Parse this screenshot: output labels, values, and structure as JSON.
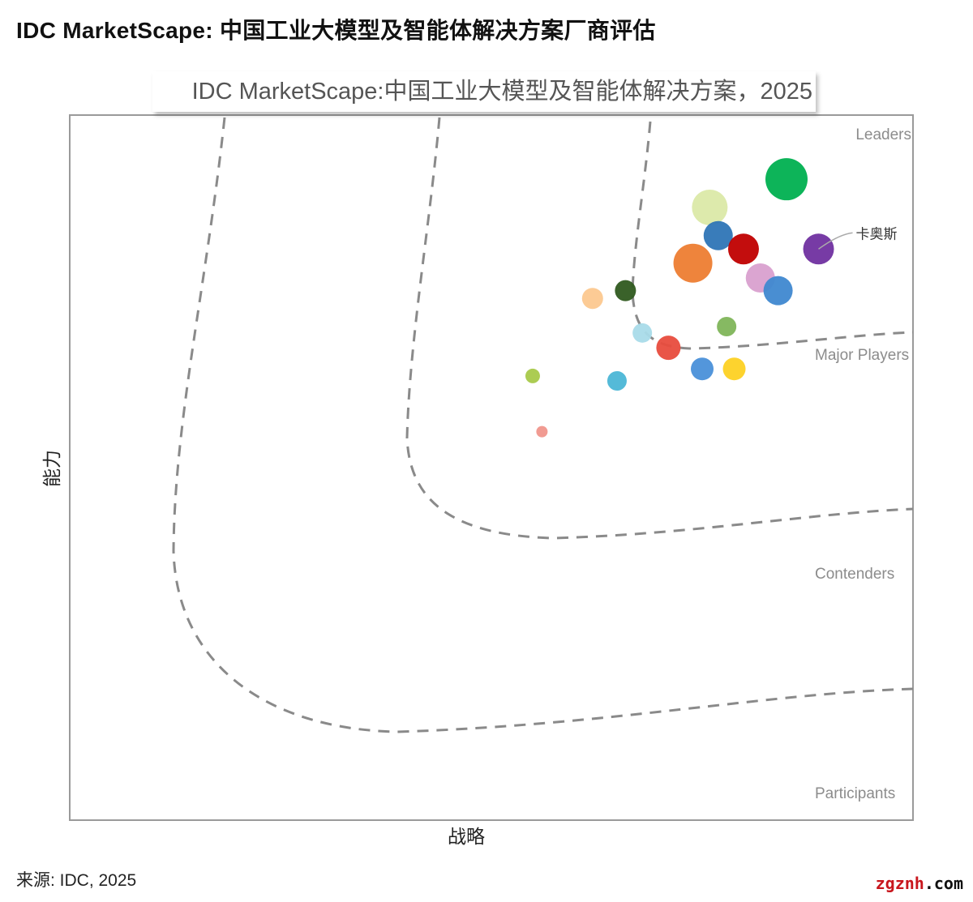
{
  "headline": "IDC MarketScape: 中国工业大模型及智能体解决方案厂商评估",
  "source": "来源: IDC, 2025",
  "watermark": {
    "part1": "zgznh",
    "part2": ".com"
  },
  "chart_data": {
    "type": "scatter",
    "subtype": "bubble",
    "title": "IDC MarketScape:中国工业大模型及智能体解决方案，2025",
    "xlabel": "战略",
    "ylabel": "能力",
    "xlim": [
      0,
      100
    ],
    "ylim": [
      0,
      100
    ],
    "grid": false,
    "segments": [
      "Leaders",
      "Major Players",
      "Contenders",
      "Participants"
    ],
    "points": [
      {
        "x": 85.0,
        "y": 90.9,
        "size": 26,
        "color": "#00b050"
      },
      {
        "x": 75.9,
        "y": 86.9,
        "size": 22,
        "color": "#dbe9a8"
      },
      {
        "x": 76.9,
        "y": 82.9,
        "size": 18,
        "color": "#2e75b6"
      },
      {
        "x": 79.9,
        "y": 81.0,
        "size": 19,
        "color": "#c00000"
      },
      {
        "x": 88.8,
        "y": 81.0,
        "size": 19,
        "color": "#7030a0",
        "label": "卡奥斯"
      },
      {
        "x": 73.9,
        "y": 79.0,
        "size": 24,
        "color": "#ed7d31"
      },
      {
        "x": 81.9,
        "y": 76.9,
        "size": 18,
        "color": "#d9a0cf"
      },
      {
        "x": 84.0,
        "y": 75.1,
        "size": 18,
        "color": "#3f88d0"
      },
      {
        "x": 62.0,
        "y": 74.0,
        "size": 13,
        "color": "#fcc88f"
      },
      {
        "x": 65.9,
        "y": 75.1,
        "size": 13,
        "color": "#2f5a1f"
      },
      {
        "x": 67.9,
        "y": 69.1,
        "size": 12,
        "color": "#a9dbe9"
      },
      {
        "x": 77.9,
        "y": 70.0,
        "size": 12,
        "color": "#7fb55a"
      },
      {
        "x": 71.0,
        "y": 67.0,
        "size": 15,
        "color": "#e84c3d"
      },
      {
        "x": 75.0,
        "y": 64.0,
        "size": 14,
        "color": "#4a90d9"
      },
      {
        "x": 78.8,
        "y": 64.0,
        "size": 14,
        "color": "#fdd123"
      },
      {
        "x": 54.9,
        "y": 63.0,
        "size": 9,
        "color": "#a8c94a"
      },
      {
        "x": 64.9,
        "y": 62.3,
        "size": 12,
        "color": "#4bb6d6"
      },
      {
        "x": 56.0,
        "y": 55.1,
        "size": 7,
        "color": "#f0968c"
      }
    ]
  }
}
